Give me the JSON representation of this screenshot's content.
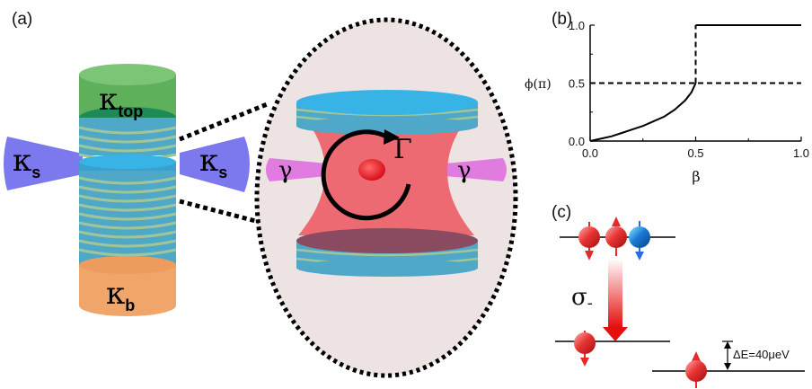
{
  "panels": {
    "a": "(a)",
    "b": "(b)",
    "c": "(c)"
  },
  "panel_a": {
    "kappa_symbol": "κ",
    "top_sub": "top",
    "bottom_sub": "b",
    "side_sub": "s",
    "gamma": "γ",
    "Gamma": "Γ"
  },
  "chart_data": {
    "type": "line",
    "xlabel": "β",
    "ylabel": "ϕ(π)",
    "xlim": [
      0,
      1
    ],
    "ylim": [
      0,
      1
    ],
    "xticks": [
      "0.0",
      "0.5",
      "1.0"
    ],
    "yticks": [
      "0.0",
      "0.5",
      "1.0"
    ],
    "series": [
      {
        "style": "solid",
        "x": [
          0,
          0.05,
          0.1,
          0.15,
          0.2,
          0.25,
          0.3,
          0.35,
          0.4,
          0.45,
          0.48,
          0.5
        ],
        "y": [
          0,
          0.02,
          0.04,
          0.07,
          0.1,
          0.13,
          0.17,
          0.21,
          0.27,
          0.35,
          0.42,
          0.5
        ]
      },
      {
        "style": "solid",
        "x": [
          0.5,
          1.0
        ],
        "y": [
          1.0,
          1.0
        ]
      },
      {
        "style": "dashed",
        "x": [
          0,
          1.0
        ],
        "y": [
          0.5,
          0.5
        ]
      },
      {
        "style": "dashed",
        "x": [
          0.5,
          0.5
        ],
        "y": [
          0.5,
          1.0
        ]
      }
    ],
    "grid": false
  },
  "panel_c": {
    "transition_label": "σ",
    "transition_sub": "-",
    "energy_label": "ΔE=40μeV"
  },
  "colors": {
    "green": "#5fb05a",
    "teal_layer": "#4fa8c8",
    "orange": "#f0a56b",
    "blue_cone": "#7c79ee",
    "pink_beam": "#e07be0",
    "red_cavity": "#ee6a72",
    "red_dot": "#e8202a",
    "disk_bg": "#ede3e3"
  }
}
